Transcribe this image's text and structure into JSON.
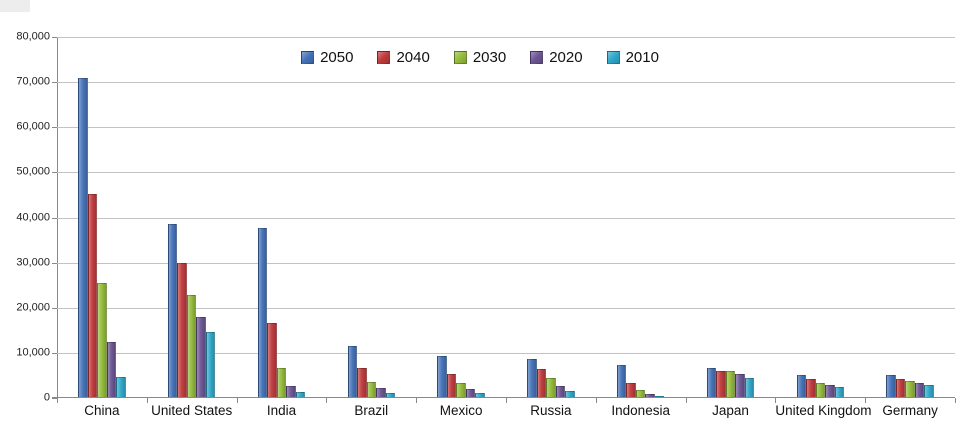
{
  "chart_data": {
    "type": "bar",
    "title": "",
    "xlabel": "",
    "ylabel": "",
    "grid": true,
    "legend_position": "top-center",
    "ylim": [
      0,
      80000
    ],
    "ytick_step": 10000,
    "yticklabels": [
      "0",
      "10,000",
      "20,000",
      "30,000",
      "40,000",
      "50,000",
      "60,000",
      "70,000",
      "80,000"
    ],
    "categories": [
      "China",
      "United States",
      "India",
      "Brazil",
      "Mexico",
      "Russia",
      "Indonesia",
      "Japan",
      "United Kingdom",
      "Germany"
    ],
    "series": [
      {
        "name": "2050",
        "color": "#4472B8",
        "values": [
          70700,
          38400,
          37400,
          11200,
          9200,
          8400,
          7000,
          6400,
          4900,
          4800
        ]
      },
      {
        "name": "2040",
        "color": "#C03A3C",
        "values": [
          45000,
          29600,
          16300,
          6500,
          5200,
          6300,
          3000,
          5800,
          4000,
          4100
        ]
      },
      {
        "name": "2030",
        "color": "#94BC3A",
        "values": [
          25300,
          22500,
          6400,
          3400,
          3200,
          4300,
          1500,
          5700,
          3100,
          3500
        ]
      },
      {
        "name": "2020",
        "color": "#6C5594",
        "values": [
          12300,
          17700,
          2500,
          1900,
          1800,
          2500,
          700,
          5000,
          2600,
          3000
        ]
      },
      {
        "name": "2010",
        "color": "#2FA8CA",
        "values": [
          4500,
          14300,
          1200,
          900,
          1000,
          1300,
          300,
          4300,
          2200,
          2600
        ]
      }
    ],
    "axis_color": "#888888",
    "gridline_color": "#C3C3C3"
  }
}
